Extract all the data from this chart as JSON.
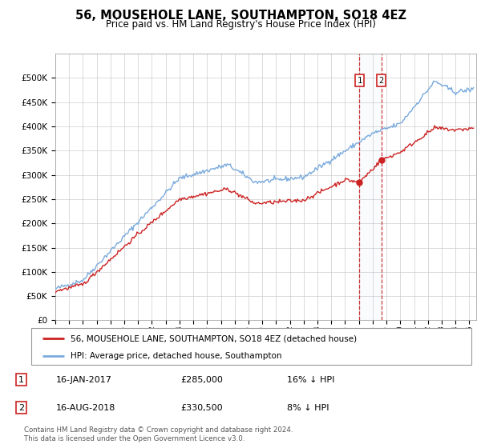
{
  "title": "56, MOUSEHOLE LANE, SOUTHAMPTON, SO18 4EZ",
  "subtitle": "Price paid vs. HM Land Registry's House Price Index (HPI)",
  "hpi_color": "#7aaadd",
  "price_color": "#cc2222",
  "transaction1_date": 2017.04,
  "transaction1_price": 285000,
  "transaction2_date": 2018.62,
  "transaction2_price": 330500,
  "legend_entries": [
    "56, MOUSEHOLE LANE, SOUTHAMPTON, SO18 4EZ (detached house)",
    "HPI: Average price, detached house, Southampton"
  ],
  "table_rows": [
    [
      "1",
      "16-JAN-2017",
      "£285,000",
      "16% ↓ HPI"
    ],
    [
      "2",
      "16-AUG-2018",
      "£330,500",
      "8% ↓ HPI"
    ]
  ],
  "footnote": "Contains HM Land Registry data © Crown copyright and database right 2024.\nThis data is licensed under the Open Government Licence v3.0.",
  "background_color": "#ffffff",
  "grid_color": "#cccccc",
  "ylim": [
    0,
    550000
  ],
  "xlim": [
    1995,
    2025.5
  ]
}
